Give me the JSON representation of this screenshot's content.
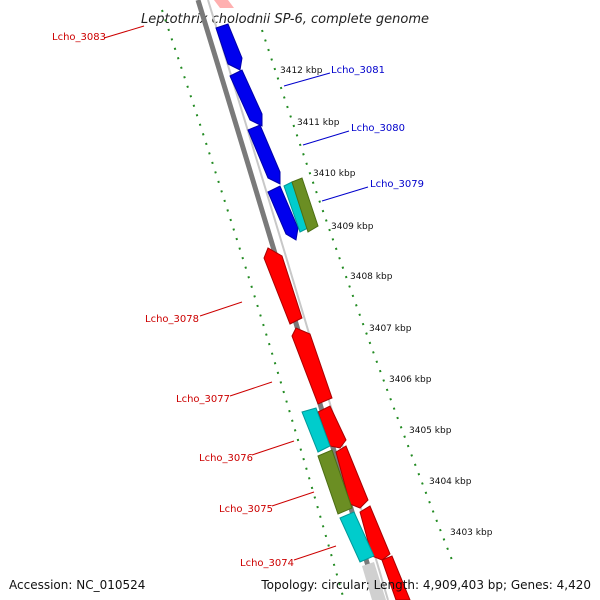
{
  "title": "Leptothrix cholodnii SP-6, complete genome",
  "accession": "Accession: NC_010524",
  "summary": "Topology: circular; Length: 4,909,403 bp; Genes: 4,420",
  "colors": {
    "blue_gene": "#0000ee",
    "red_gene": "#ff0000",
    "cyan_gene": "#00cccc",
    "olive_gene": "#6b8e23",
    "backbone": "#888888",
    "tick": "#228b22",
    "label_blue": "#0000cc",
    "label_red": "#cc0000"
  },
  "kbp_markers": [
    "3412 kbp",
    "3411 kbp",
    "3410 kbp",
    "3409 kbp",
    "3408 kbp",
    "3407 kbp",
    "3406 kbp",
    "3405 kbp",
    "3404 kbp",
    "3403 kbp"
  ],
  "gene_labels": [
    {
      "text": "Lcho_3083",
      "color": "red"
    },
    {
      "text": "Lcho_3081",
      "color": "blue"
    },
    {
      "text": "Lcho_3080",
      "color": "blue"
    },
    {
      "text": "Lcho_3079",
      "color": "blue"
    },
    {
      "text": "Lcho_3078",
      "color": "red"
    },
    {
      "text": "Lcho_3077",
      "color": "red"
    },
    {
      "text": "Lcho_3076",
      "color": "red"
    },
    {
      "text": "Lcho_3075",
      "color": "red"
    },
    {
      "text": "Lcho_3074",
      "color": "red"
    }
  ]
}
